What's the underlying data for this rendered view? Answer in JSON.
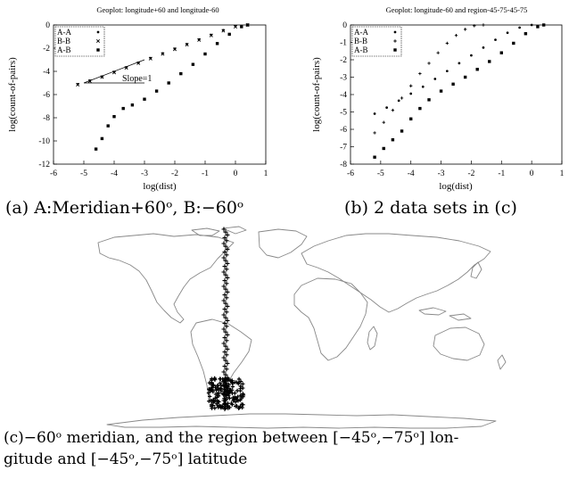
{
  "captions": {
    "a": "(a) A:Meridian+60ᵒ, B:−60ᵒ",
    "b": "(b) 2 data sets in (c)",
    "c_line1": "(c)−60ᵒ meridian, and the region between [−45ᵒ,−75ᵒ] lon-",
    "c_line2": "gitude and [−45ᵒ,−75ᵒ] latitude"
  },
  "chart_data": [
    {
      "type": "scatter",
      "title": "Geoplot: longitude+60 and longitude-60",
      "xlabel": "log(dist)",
      "ylabel": "log(count-of-pairs)",
      "xlim": [
        -6,
        1
      ],
      "ylim": [
        -12,
        0
      ],
      "xticks": [
        "-6",
        "-5",
        "-4",
        "-3",
        "-2",
        "-1",
        "0",
        "1"
      ],
      "yticks": [
        "0",
        "-2",
        "-4",
        "-6",
        "-8",
        "-10",
        "-12"
      ],
      "legend": {
        "placement": "top-left",
        "entries": [
          "A-A",
          "B-B",
          "A-B"
        ]
      },
      "annotation": "Slope=1",
      "series": [
        {
          "name": "A-A",
          "marker": "dot",
          "x": [
            -5.2,
            -4.8,
            -4.4,
            -4.0,
            -3.6,
            -3.2,
            -2.8,
            -2.4,
            -2.0,
            -1.6,
            -1.2,
            -0.8,
            -0.4,
            0.0,
            0.4
          ],
          "y": [
            -5.1,
            -4.8,
            -4.45,
            -4.05,
            -3.65,
            -3.25,
            -2.85,
            -2.45,
            -2.05,
            -1.65,
            -1.25,
            -0.85,
            -0.45,
            -0.1,
            0.0
          ]
        },
        {
          "name": "B-B",
          "marker": "x",
          "x": [
            -5.2,
            -4.8,
            -4.4,
            -4.0,
            -3.6,
            -3.2,
            -2.8,
            -2.4,
            -2.0,
            -1.6,
            -1.2,
            -0.8,
            -0.4,
            0.0,
            0.4
          ],
          "y": [
            -5.15,
            -4.85,
            -4.5,
            -4.1,
            -3.7,
            -3.3,
            -2.9,
            -2.5,
            -2.1,
            -1.7,
            -1.3,
            -0.9,
            -0.5,
            -0.15,
            0.0
          ]
        },
        {
          "name": "A-B",
          "marker": "square",
          "x": [
            -4.6,
            -4.4,
            -4.2,
            -4.0,
            -3.7,
            -3.4,
            -3.0,
            -2.6,
            -2.2,
            -1.8,
            -1.4,
            -1.0,
            -0.6,
            -0.2,
            0.2,
            0.4
          ],
          "y": [
            -10.7,
            -9.8,
            -8.7,
            -7.9,
            -7.2,
            -6.9,
            -6.4,
            -5.7,
            -5.0,
            -4.2,
            -3.4,
            -2.5,
            -1.6,
            -0.8,
            -0.15,
            0.0
          ]
        }
      ],
      "slope_guide": {
        "x": [
          -5.0,
          -3.0
        ],
        "y": [
          -5.0,
          -3.0
        ]
      }
    },
    {
      "type": "scatter",
      "title": "Geoplot: longitude-60 and region-45-75-45-75",
      "xlabel": "log(dist)",
      "ylabel": "log(count-of-pairs)",
      "xlim": [
        -6,
        1
      ],
      "ylim": [
        -8,
        0
      ],
      "xticks": [
        "-6",
        "-5",
        "-4",
        "-3",
        "-2",
        "-1",
        "0",
        "1"
      ],
      "yticks": [
        "0",
        "-1",
        "-2",
        "-3",
        "-4",
        "-5",
        "-6",
        "-7",
        "-8"
      ],
      "legend": {
        "placement": "top-left",
        "entries": [
          "A-A",
          "B-B",
          "A-B"
        ]
      },
      "series": [
        {
          "name": "A-A",
          "marker": "dot",
          "x": [
            -5.2,
            -4.8,
            -4.4,
            -4.0,
            -3.6,
            -3.2,
            -2.8,
            -2.4,
            -2.0,
            -1.6,
            -1.2,
            -0.8,
            -0.4,
            0.0,
            0.4
          ],
          "y": [
            -5.1,
            -4.75,
            -4.35,
            -3.95,
            -3.55,
            -3.1,
            -2.65,
            -2.2,
            -1.75,
            -1.3,
            -0.85,
            -0.45,
            -0.15,
            0.0,
            0.0
          ]
        },
        {
          "name": "B-B",
          "marker": "plus",
          "x": [
            -5.2,
            -4.9,
            -4.6,
            -4.3,
            -4.0,
            -3.7,
            -3.4,
            -3.1,
            -2.8,
            -2.5,
            -2.2,
            -1.9,
            -1.6
          ],
          "y": [
            -6.2,
            -5.6,
            -4.9,
            -4.2,
            -3.5,
            -2.8,
            -2.2,
            -1.6,
            -1.05,
            -0.6,
            -0.25,
            -0.05,
            0.0
          ]
        },
        {
          "name": "A-B",
          "marker": "square",
          "x": [
            -5.2,
            -4.9,
            -4.6,
            -4.3,
            -4.0,
            -3.7,
            -3.4,
            -3.0,
            -2.6,
            -2.2,
            -1.8,
            -1.4,
            -1.0,
            -0.6,
            -0.2,
            0.2,
            0.4
          ],
          "y": [
            -7.6,
            -7.1,
            -6.6,
            -6.1,
            -5.4,
            -4.8,
            -4.3,
            -3.8,
            -3.4,
            -3.0,
            -2.55,
            -2.1,
            -1.6,
            -1.05,
            -0.5,
            -0.1,
            0.0
          ]
        }
      ]
    }
  ]
}
